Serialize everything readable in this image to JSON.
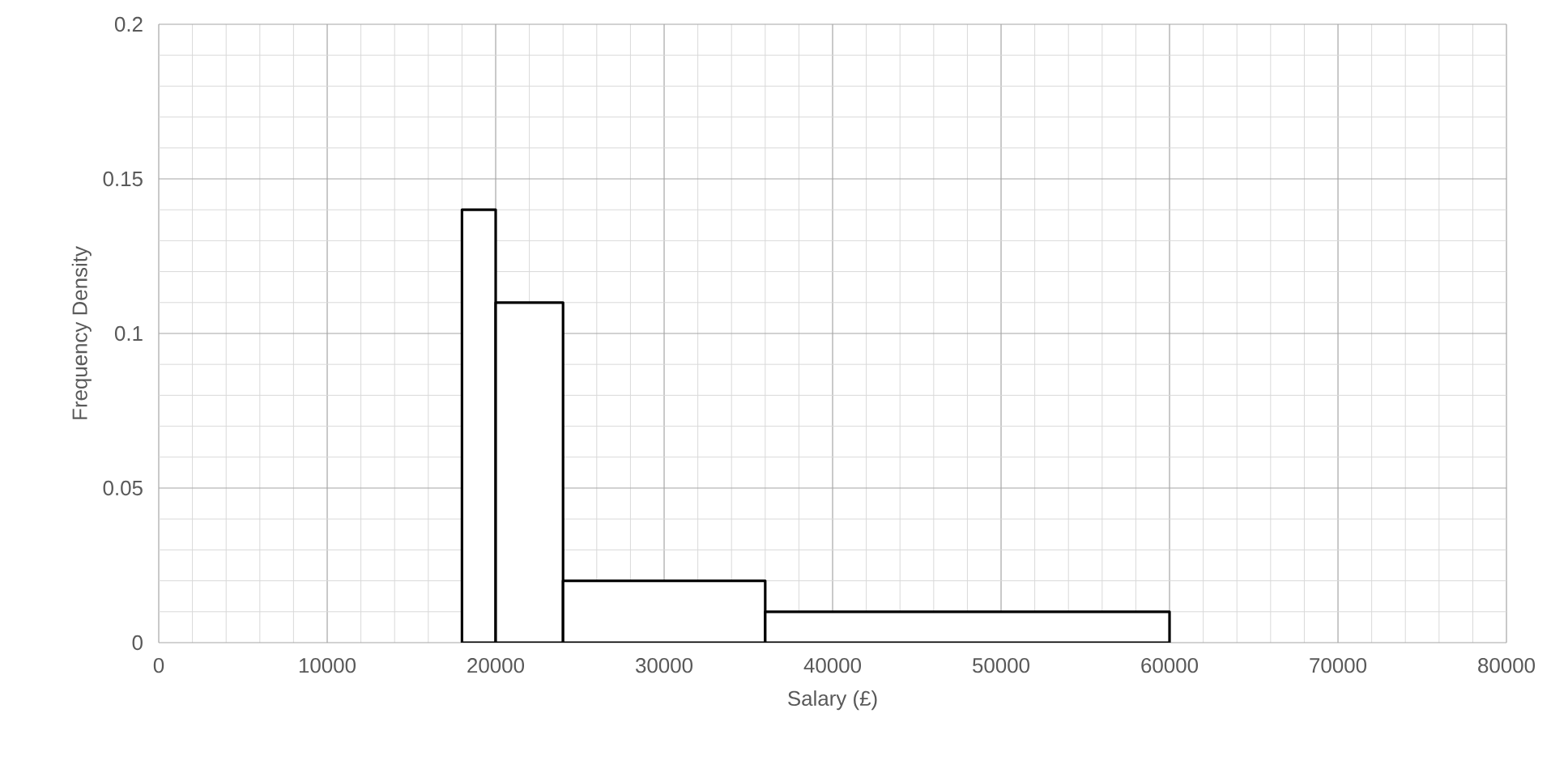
{
  "chart_data": {
    "type": "histogram",
    "xlabel": "Salary (£)",
    "ylabel": "Frequency Density",
    "bins": [
      18000,
      20000,
      24000,
      36000,
      60000
    ],
    "values": [
      0.14,
      0.11,
      0.02,
      0.01
    ],
    "color": "#000000",
    "xlim": [
      0,
      80000
    ],
    "ylim": [
      0,
      0.2
    ],
    "xticks": [
      0,
      10000,
      20000,
      30000,
      40000,
      50000,
      60000,
      70000,
      80000
    ],
    "yticks": [
      0,
      0.05,
      0.1,
      0.15,
      0.2
    ],
    "grid": true
  }
}
